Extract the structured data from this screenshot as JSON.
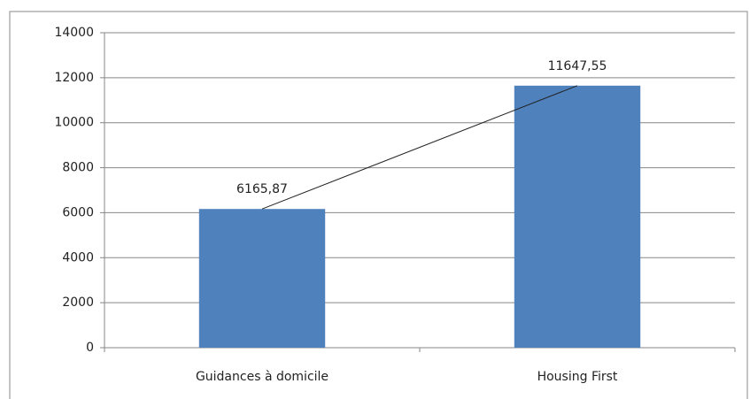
{
  "chart_data": {
    "type": "bar",
    "categories": [
      "Guidances à domicile",
      "Housing First"
    ],
    "values": [
      6165.87,
      11647.55
    ],
    "value_labels": [
      "6165,87",
      "11647,55"
    ],
    "color": "#4f81bd",
    "ylim": [
      0,
      14000
    ],
    "yticks": [
      0,
      2000,
      4000,
      6000,
      8000,
      10000,
      12000,
      14000
    ],
    "grid": true,
    "trendline": true
  }
}
